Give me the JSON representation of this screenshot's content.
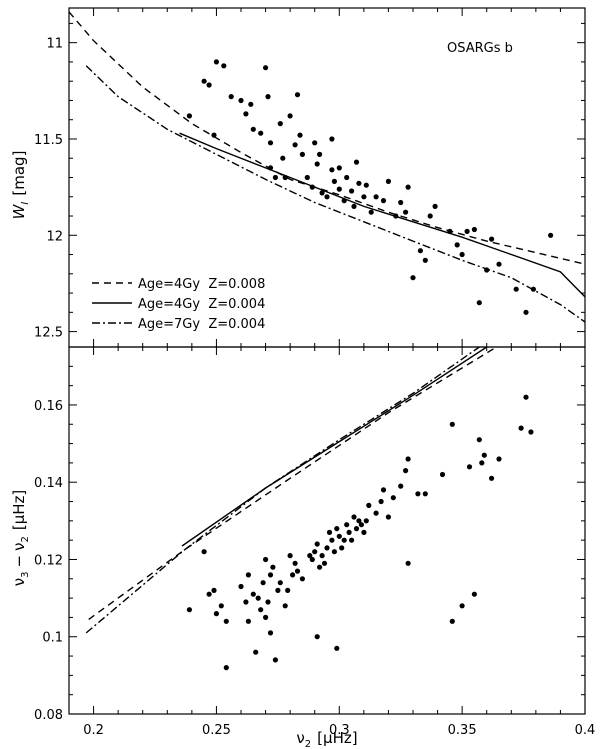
{
  "chart_data": [
    {
      "type": "scatter",
      "annotation": "OSARGs b",
      "xlabel": "",
      "ylabel": "W_I [mag]",
      "ylabel_main": "W",
      "ylabel_sub": "I",
      "ylabel_unit": "[mag]",
      "xlim": [
        0.19,
        0.4
      ],
      "ylim": [
        10.82,
        12.58
      ],
      "y_inverted": true,
      "y_ticks": [
        "11",
        "11.5",
        "12",
        "12.5"
      ],
      "y_tick_values": [
        11,
        11.5,
        12,
        12.5
      ],
      "legend_position": "bottom-left",
      "series": [
        {
          "name": "Age=4Gy  Z=0.008",
          "style": "dashed",
          "points": [
            [
              0.19,
              10.84
            ],
            [
              0.2,
              10.99
            ],
            [
              0.22,
              11.23
            ],
            [
              0.24,
              11.42
            ],
            [
              0.26,
              11.57
            ],
            [
              0.28,
              11.71
            ],
            [
              0.3,
              11.79
            ],
            [
              0.32,
              11.88
            ],
            [
              0.34,
              11.96
            ],
            [
              0.36,
              12.03
            ],
            [
              0.38,
              12.09
            ],
            [
              0.4,
              12.15
            ]
          ]
        },
        {
          "name": "Age=4Gy  Z=0.004",
          "style": "solid",
          "points": [
            [
              0.235,
              11.47
            ],
            [
              0.25,
              11.55
            ],
            [
              0.27,
              11.65
            ],
            [
              0.29,
              11.75
            ],
            [
              0.31,
              11.85
            ],
            [
              0.33,
              11.93
            ],
            [
              0.35,
              12.01
            ],
            [
              0.37,
              12.1
            ],
            [
              0.39,
              12.19
            ],
            [
              0.4,
              12.32
            ]
          ]
        },
        {
          "name": "Age=7Gy  Z=0.004",
          "style": "dashdot",
          "points": [
            [
              0.197,
              11.12
            ],
            [
              0.21,
              11.28
            ],
            [
              0.23,
              11.45
            ],
            [
              0.25,
              11.58
            ],
            [
              0.27,
              11.71
            ],
            [
              0.29,
              11.83
            ],
            [
              0.31,
              11.93
            ],
            [
              0.33,
              12.03
            ],
            [
              0.35,
              12.13
            ],
            [
              0.37,
              12.22
            ],
            [
              0.39,
              12.36
            ],
            [
              0.4,
              12.45
            ]
          ]
        }
      ],
      "scatter_points": [
        [
          0.239,
          11.38
        ],
        [
          0.245,
          11.2
        ],
        [
          0.247,
          11.22
        ],
        [
          0.249,
          11.48
        ],
        [
          0.25,
          11.1
        ],
        [
          0.253,
          11.12
        ],
        [
          0.256,
          11.28
        ],
        [
          0.26,
          11.3
        ],
        [
          0.262,
          11.37
        ],
        [
          0.264,
          11.32
        ],
        [
          0.265,
          11.45
        ],
        [
          0.268,
          11.47
        ],
        [
          0.27,
          11.13
        ],
        [
          0.271,
          11.28
        ],
        [
          0.272,
          11.52
        ],
        [
          0.272,
          11.65
        ],
        [
          0.274,
          11.7
        ],
        [
          0.276,
          11.42
        ],
        [
          0.277,
          11.6
        ],
        [
          0.278,
          11.7
        ],
        [
          0.28,
          11.38
        ],
        [
          0.282,
          11.53
        ],
        [
          0.283,
          11.27
        ],
        [
          0.284,
          11.48
        ],
        [
          0.285,
          11.58
        ],
        [
          0.287,
          11.7
        ],
        [
          0.289,
          11.75
        ],
        [
          0.29,
          11.52
        ],
        [
          0.291,
          11.63
        ],
        [
          0.293,
          11.78
        ],
        [
          0.295,
          11.8
        ],
        [
          0.297,
          11.66
        ],
        [
          0.298,
          11.72
        ],
        [
          0.3,
          11.76
        ],
        [
          0.3,
          11.65
        ],
        [
          0.302,
          11.82
        ],
        [
          0.303,
          11.7
        ],
        [
          0.305,
          11.77
        ],
        [
          0.306,
          11.85
        ],
        [
          0.307,
          11.62
        ],
        [
          0.308,
          11.73
        ],
        [
          0.31,
          11.8
        ],
        [
          0.311,
          11.74
        ],
        [
          0.313,
          11.88
        ],
        [
          0.315,
          11.8
        ],
        [
          0.318,
          11.82
        ],
        [
          0.32,
          11.72
        ],
        [
          0.323,
          11.9
        ],
        [
          0.325,
          11.83
        ],
        [
          0.327,
          11.88
        ],
        [
          0.328,
          11.75
        ],
        [
          0.33,
          12.22
        ],
        [
          0.333,
          12.08
        ],
        [
          0.335,
          12.13
        ],
        [
          0.337,
          11.9
        ],
        [
          0.339,
          11.85
        ],
        [
          0.345,
          11.98
        ],
        [
          0.348,
          12.05
        ],
        [
          0.35,
          12.1
        ],
        [
          0.352,
          11.98
        ],
        [
          0.355,
          11.97
        ],
        [
          0.357,
          12.35
        ],
        [
          0.36,
          12.18
        ],
        [
          0.362,
          12.02
        ],
        [
          0.365,
          12.15
        ],
        [
          0.372,
          12.28
        ],
        [
          0.376,
          12.4
        ],
        [
          0.379,
          12.28
        ],
        [
          0.386,
          12.0
        ],
        [
          0.292,
          11.58
        ],
        [
          0.297,
          11.5
        ]
      ]
    },
    {
      "type": "scatter",
      "xlabel": "ν2 [μHz]",
      "xlabel_main": "ν",
      "xlabel_sub": "2",
      "xlabel_unit": "[μHz]",
      "ylabel": "ν3 − ν2 [μHz]",
      "ylabel_a": "ν",
      "ylabel_a_sub": "3",
      "ylabel_minus": "−",
      "ylabel_b": "ν",
      "ylabel_b_sub": "2",
      "ylabel_unit": "[μHz]",
      "xlim": [
        0.19,
        0.4
      ],
      "ylim": [
        0.08,
        0.175
      ],
      "x_ticks": [
        "0.2",
        "0.25",
        "0.3",
        "0.35",
        "0.4"
      ],
      "x_tick_values": [
        0.2,
        0.25,
        0.3,
        0.35,
        0.4
      ],
      "y_ticks": [
        "0.08",
        "0.1",
        "0.12",
        "0.14",
        "0.16"
      ],
      "y_tick_values": [
        0.08,
        0.1,
        0.12,
        0.14,
        0.16
      ],
      "series": [
        {
          "name": "Age=4Gy  Z=0.008",
          "style": "dashed",
          "points": [
            [
              0.198,
              0.1045
            ],
            [
              0.237,
              0.1225
            ],
            [
              0.28,
              0.141
            ],
            [
              0.32,
              0.158
            ],
            [
              0.355,
              0.1715
            ],
            [
              0.364,
              0.175
            ]
          ]
        },
        {
          "name": "Age=4Gy  Z=0.004",
          "style": "solid",
          "points": [
            [
              0.236,
              0.1235
            ],
            [
              0.27,
              0.1385
            ],
            [
              0.3,
              0.1505
            ],
            [
              0.33,
              0.1625
            ],
            [
              0.36,
              0.175
            ]
          ]
        },
        {
          "name": "Age=7Gy  Z=0.004",
          "style": "dashdot",
          "points": [
            [
              0.197,
              0.101
            ],
            [
              0.237,
              0.1225
            ],
            [
              0.27,
              0.1385
            ],
            [
              0.3,
              0.151
            ],
            [
              0.33,
              0.163
            ],
            [
              0.357,
              0.175
            ]
          ]
        }
      ],
      "scatter_points": [
        [
          0.239,
          0.107
        ],
        [
          0.245,
          0.122
        ],
        [
          0.247,
          0.111
        ],
        [
          0.249,
          0.112
        ],
        [
          0.25,
          0.106
        ],
        [
          0.252,
          0.108
        ],
        [
          0.254,
          0.104
        ],
        [
          0.254,
          0.092
        ],
        [
          0.26,
          0.113
        ],
        [
          0.262,
          0.109
        ],
        [
          0.263,
          0.116
        ],
        [
          0.263,
          0.104
        ],
        [
          0.265,
          0.111
        ],
        [
          0.266,
          0.096
        ],
        [
          0.267,
          0.11
        ],
        [
          0.268,
          0.107
        ],
        [
          0.269,
          0.114
        ],
        [
          0.27,
          0.12
        ],
        [
          0.27,
          0.105
        ],
        [
          0.271,
          0.109
        ],
        [
          0.272,
          0.116
        ],
        [
          0.272,
          0.101
        ],
        [
          0.273,
          0.118
        ],
        [
          0.274,
          0.094
        ],
        [
          0.275,
          0.112
        ],
        [
          0.276,
          0.114
        ],
        [
          0.278,
          0.108
        ],
        [
          0.279,
          0.112
        ],
        [
          0.28,
          0.121
        ],
        [
          0.281,
          0.116
        ],
        [
          0.282,
          0.119
        ],
        [
          0.283,
          0.117
        ],
        [
          0.285,
          0.115
        ],
        [
          0.288,
          0.121
        ],
        [
          0.289,
          0.12
        ],
        [
          0.29,
          0.122
        ],
        [
          0.291,
          0.124
        ],
        [
          0.291,
          0.1
        ],
        [
          0.292,
          0.118
        ],
        [
          0.293,
          0.121
        ],
        [
          0.294,
          0.119
        ],
        [
          0.295,
          0.123
        ],
        [
          0.296,
          0.127
        ],
        [
          0.297,
          0.125
        ],
        [
          0.298,
          0.122
        ],
        [
          0.299,
          0.128
        ],
        [
          0.299,
          0.097
        ],
        [
          0.3,
          0.126
        ],
        [
          0.301,
          0.123
        ],
        [
          0.302,
          0.125
        ],
        [
          0.303,
          0.129
        ],
        [
          0.304,
          0.127
        ],
        [
          0.305,
          0.125
        ],
        [
          0.306,
          0.131
        ],
        [
          0.307,
          0.128
        ],
        [
          0.308,
          0.13
        ],
        [
          0.309,
          0.129
        ],
        [
          0.31,
          0.127
        ],
        [
          0.311,
          0.13
        ],
        [
          0.312,
          0.134
        ],
        [
          0.315,
          0.132
        ],
        [
          0.317,
          0.135
        ],
        [
          0.318,
          0.138
        ],
        [
          0.32,
          0.131
        ],
        [
          0.322,
          0.136
        ],
        [
          0.325,
          0.139
        ],
        [
          0.327,
          0.143
        ],
        [
          0.328,
          0.146
        ],
        [
          0.328,
          0.119
        ],
        [
          0.332,
          0.137
        ],
        [
          0.335,
          0.137
        ],
        [
          0.342,
          0.142
        ],
        [
          0.346,
          0.155
        ],
        [
          0.346,
          0.104
        ],
        [
          0.35,
          0.108
        ],
        [
          0.353,
          0.144
        ],
        [
          0.355,
          0.111
        ],
        [
          0.357,
          0.151
        ],
        [
          0.358,
          0.145
        ],
        [
          0.359,
          0.147
        ],
        [
          0.362,
          0.141
        ],
        [
          0.365,
          0.146
        ],
        [
          0.374,
          0.154
        ],
        [
          0.376,
          0.162
        ],
        [
          0.378,
          0.153
        ]
      ]
    }
  ]
}
